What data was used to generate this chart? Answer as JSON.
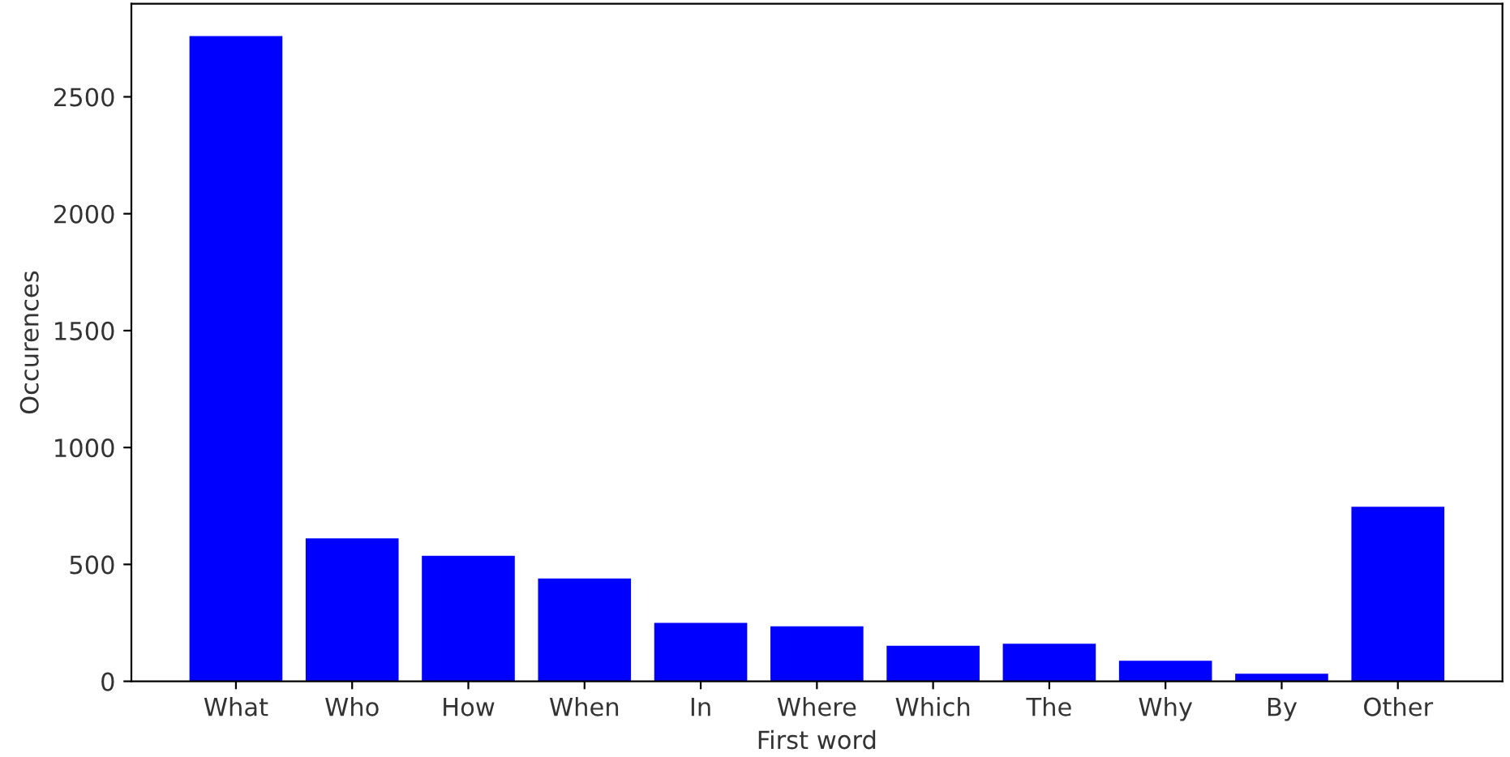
{
  "chart_data": {
    "type": "bar",
    "xlabel": "First word",
    "ylabel": "Occurences",
    "categories": [
      "What",
      "Who",
      "How",
      "When",
      "In",
      "Where",
      "Which",
      "The",
      "Why",
      "By",
      "Other"
    ],
    "values": [
      2760,
      611,
      537,
      440,
      250,
      235,
      152,
      161,
      88,
      32,
      747
    ],
    "color": "#0000ff",
    "ylim": [
      0,
      2898
    ],
    "yticks": [
      0,
      500,
      1000,
      1500,
      2000,
      2500
    ],
    "grid": false
  }
}
